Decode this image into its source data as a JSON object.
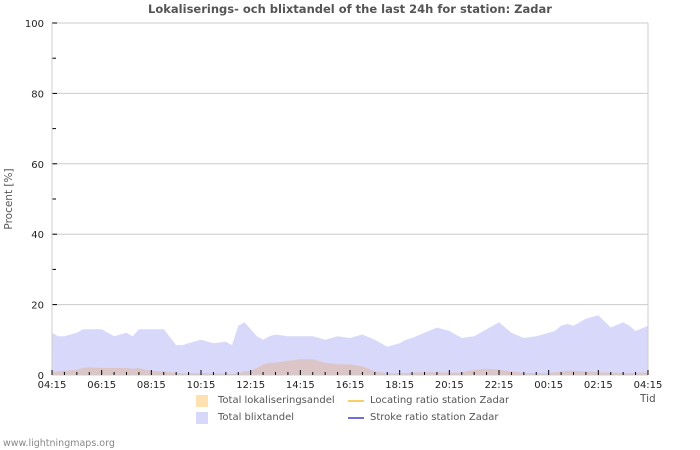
{
  "chart_data": {
    "type": "area",
    "title": "Lokaliserings- och blixtandel of the last 24h for station: Zadar",
    "xlabel": "Tid",
    "ylabel": "Procent   [%]",
    "ylim": [
      0,
      100
    ],
    "yticks": [
      0,
      20,
      40,
      60,
      80,
      100
    ],
    "xtick_labels": [
      "04:15",
      "06:15",
      "08:15",
      "10:15",
      "12:15",
      "14:15",
      "16:15",
      "18:15",
      "20:15",
      "22:15",
      "00:15",
      "02:15",
      "04:15"
    ],
    "grid": true,
    "legend_position": "bottom",
    "x_hours": [
      0,
      0.25,
      0.5,
      1,
      1.25,
      1.5,
      2,
      2.5,
      3,
      3.25,
      3.5,
      3.75,
      4,
      4.5,
      5,
      5.25,
      5.5,
      6,
      6.5,
      7,
      7.25,
      7.5,
      7.75,
      8,
      8.25,
      8.5,
      8.75,
      9,
      9.5,
      10,
      10.5,
      11,
      11.5,
      12,
      12.5,
      13,
      13.5,
      14,
      14.25,
      14.5,
      15,
      15.5,
      16,
      16.5,
      17,
      17.5,
      18,
      18.5,
      19,
      19.5,
      20,
      20.25,
      20.5,
      20.75,
      21,
      21.5,
      22,
      22.5,
      23,
      23.25,
      23.5,
      24
    ],
    "series": [
      {
        "name": "Total blixtandel",
        "color": "#d8d8fa",
        "values": [
          12,
          11,
          11,
          12,
          13,
          13,
          13,
          11,
          12,
          11,
          13,
          13,
          13,
          13,
          8.5,
          8.5,
          9,
          10,
          9,
          9.5,
          8.5,
          14,
          15,
          13,
          11,
          10,
          11,
          11.5,
          11,
          11,
          11,
          10,
          11,
          10.5,
          11.5,
          10,
          8,
          9,
          10,
          10.5,
          12,
          13.5,
          12.5,
          10.5,
          11,
          13,
          15,
          12,
          10.5,
          11,
          12,
          12.5,
          14,
          14.5,
          14,
          16,
          17,
          13.5,
          15,
          14,
          12.5,
          14
        ]
      },
      {
        "name": "Total lokaliseringsandel",
        "color": "#fde1b0",
        "values": [
          1,
          1,
          1.2,
          1.5,
          2,
          2.2,
          2,
          2,
          2,
          1.8,
          2,
          1.5,
          1.2,
          1,
          0.6,
          0.5,
          0.5,
          0.5,
          0.5,
          0.4,
          0.3,
          0.5,
          1,
          1.2,
          2,
          3,
          3.5,
          3.5,
          4,
          4.5,
          4.5,
          3.5,
          3,
          3,
          2.5,
          1,
          0.5,
          0.5,
          0.5,
          0.7,
          0.8,
          0.8,
          0.7,
          0.7,
          1.5,
          1.8,
          1.5,
          1,
          0.6,
          0.5,
          0.5,
          0.8,
          1,
          1.2,
          1.2,
          1,
          0.8,
          0.7,
          0.6,
          0.6,
          0.6,
          0.8
        ]
      },
      {
        "name": "Locating ratio station Zadar",
        "color": "#f8cd6a",
        "values": []
      },
      {
        "name": "Stroke ratio station Zadar",
        "color": "#6f6fd6",
        "values": []
      }
    ]
  },
  "footer": "www.lightningmaps.org"
}
